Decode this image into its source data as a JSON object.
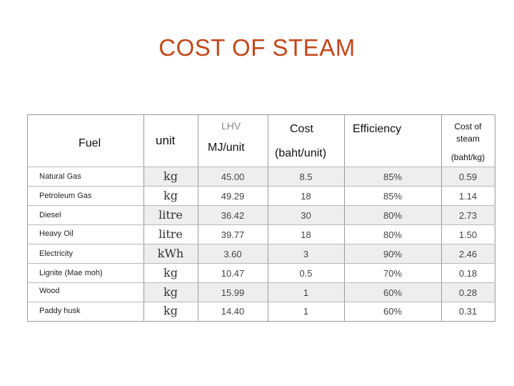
{
  "title": "COST OF STEAM",
  "headers": {
    "fuel": "Fuel",
    "unit": "unit",
    "lhv": "LHV",
    "lhv_unit": "MJ/unit",
    "cost": "Cost",
    "cost_unit": "(baht/unit)",
    "efficiency": "Efficiency",
    "steam_cost_line1": "Cost of",
    "steam_cost_line2": "steam",
    "steam_cost_unit": "(baht/kg)"
  },
  "rows": [
    {
      "fuel": "Natural Gas",
      "unit": "kg",
      "lhv": "45.00",
      "cost": "8.5",
      "efficiency": "85%",
      "steam_cost": "0.59"
    },
    {
      "fuel": "Petroleum Gas",
      "unit": "kg",
      "lhv": "49.29",
      "cost": "18",
      "efficiency": "85%",
      "steam_cost": "1.14"
    },
    {
      "fuel": "Diesel",
      "unit": "litre",
      "lhv": "36.42",
      "cost": "30",
      "efficiency": "80%",
      "steam_cost": "2.73"
    },
    {
      "fuel": "Heavy Oil",
      "unit": "litre",
      "lhv": "39.77",
      "cost": "18",
      "efficiency": "80%",
      "steam_cost": "1.50"
    },
    {
      "fuel": "Electricity",
      "unit": "kWh",
      "lhv": "3.60",
      "cost": "3",
      "efficiency": "90%",
      "steam_cost": "2.46"
    },
    {
      "fuel": "Lignite (Mae moh)",
      "unit": "kg",
      "lhv": "10.47",
      "cost": "0.5",
      "efficiency": "70%",
      "steam_cost": "0.18"
    },
    {
      "fuel": "Wood",
      "unit": "kg",
      "lhv": "15.99",
      "cost": "1",
      "efficiency": "60%",
      "steam_cost": "0.28"
    },
    {
      "fuel": "Paddy husk",
      "unit": "kg",
      "lhv": "14.40",
      "cost": "1",
      "efficiency": "60%",
      "steam_cost": "0.31"
    }
  ]
}
